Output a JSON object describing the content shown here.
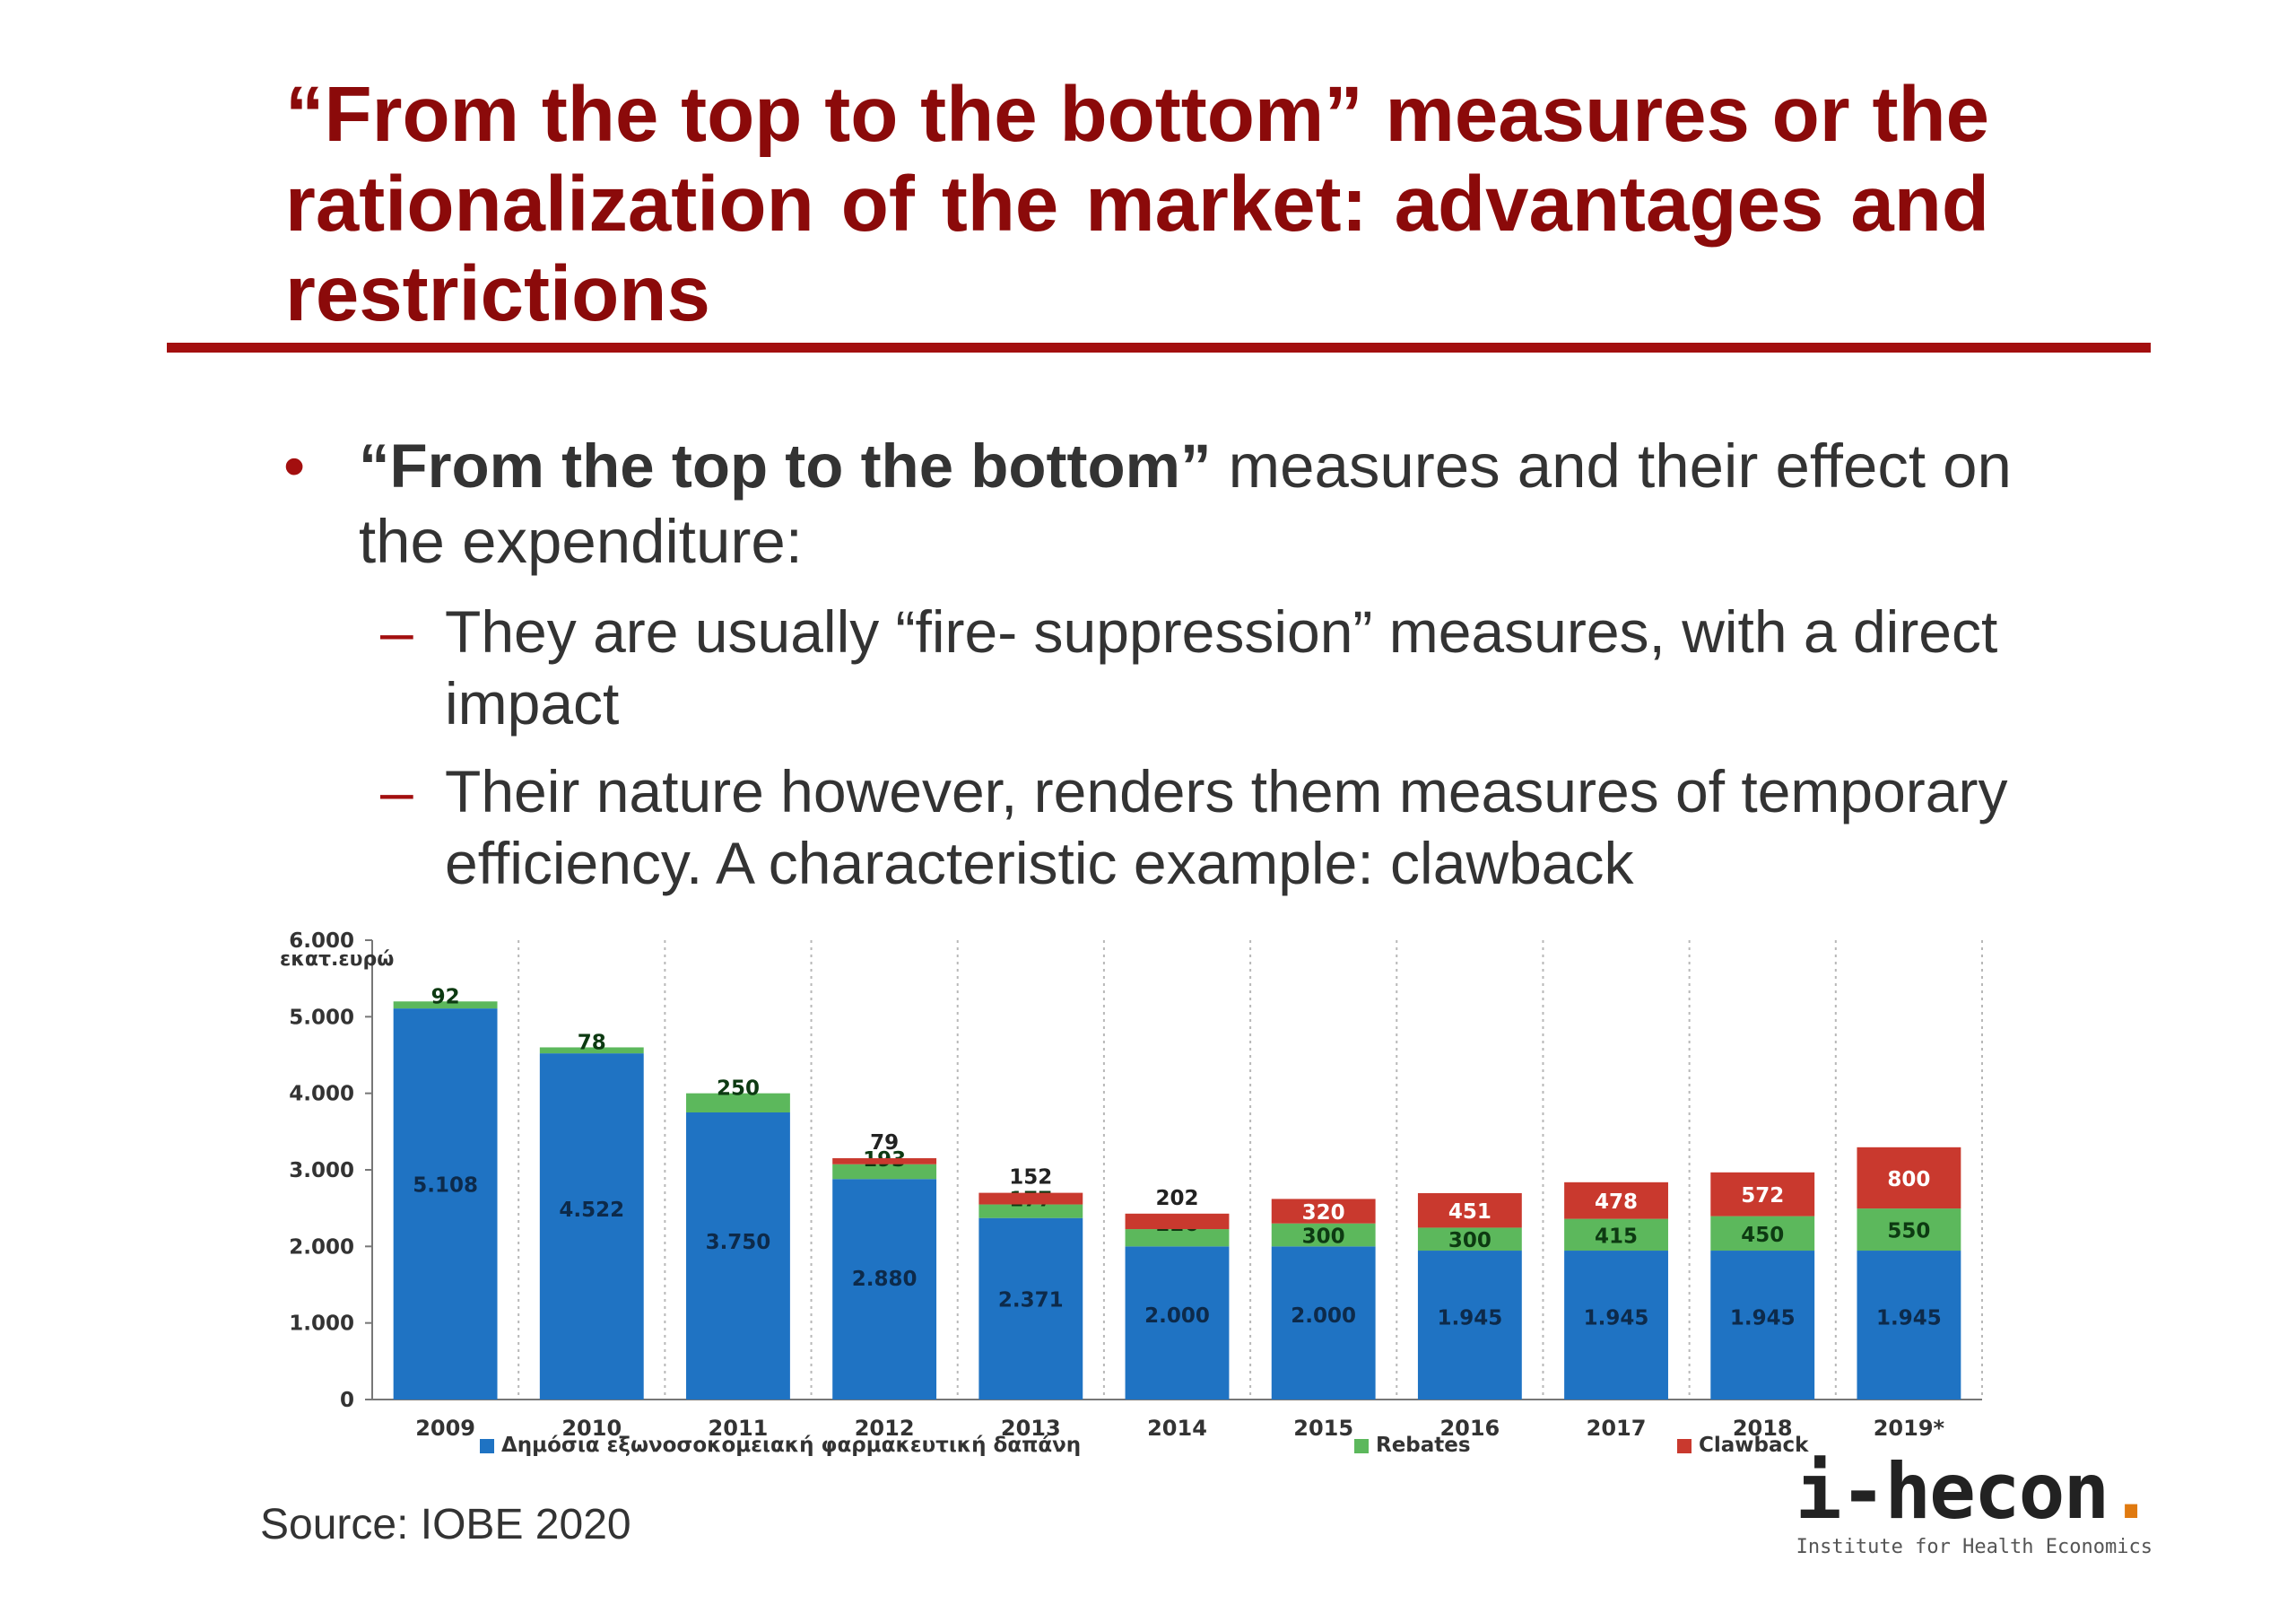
{
  "slide": {
    "title": "“From the top to the bottom” measures or the rationalization of the market: advantages and restrictions",
    "bullet_bold": "“From the top to the bottom”",
    "bullet_rest": " measures and their effect on the expenditure:",
    "sub1": "They are usually “fire- suppression” measures, with a direct impact",
    "sub2": "Their nature however, renders them measures of temporary efficiency. A characteristic example: clawback",
    "bullet_symbol": "•",
    "dash_symbol": "–",
    "source": "Source: IOBE 2020",
    "logo_main": "i-hecon",
    "logo_dot": ".",
    "logo_sub": "Institute for Health Economics",
    "accent_color": "#8b0a0a"
  },
  "chart_data": {
    "type": "bar",
    "stacked": true,
    "ylabel": "εκατ.ευρώ",
    "ylim": [
      0,
      6000
    ],
    "yticks": [
      "0",
      "1.000",
      "2.000",
      "3.000",
      "4.000",
      "5.000",
      "6.000"
    ],
    "ytick_values": [
      0,
      1000,
      2000,
      3000,
      4000,
      5000,
      6000
    ],
    "grid": "vertical dotted",
    "legend_position": "bottom",
    "categories": [
      "2009",
      "2010",
      "2011",
      "2012",
      "2013",
      "2014",
      "2015",
      "2016",
      "2017",
      "2018",
      "2019*"
    ],
    "series": [
      {
        "name": "Δημόσια εξωνοσοκομειακή φαρμακευτική δαπάνη",
        "color": "#1f73c3",
        "values": [
          5108,
          4522,
          3750,
          2880,
          2371,
          2000,
          2000,
          1945,
          1945,
          1945,
          1945
        ],
        "labels": [
          "5.108",
          "4.522",
          "3.750",
          "2.880",
          "2.371",
          "2.000",
          "2.000",
          "1.945",
          "1.945",
          "1.945",
          "1.945"
        ]
      },
      {
        "name": "Rebates",
        "color": "#5cb85c",
        "values": [
          92,
          78,
          250,
          193,
          177,
          226,
          300,
          300,
          415,
          450,
          550
        ],
        "labels": [
          "92",
          "78",
          "250",
          "193",
          "177",
          "226",
          "300",
          "300",
          "415",
          "450",
          "550"
        ]
      },
      {
        "name": "Clawback",
        "color": "#c9392e",
        "values": [
          0,
          0,
          0,
          79,
          152,
          202,
          320,
          451,
          478,
          572,
          800
        ],
        "labels": [
          "",
          "",
          "",
          "79",
          "152",
          "202",
          "320",
          "451",
          "478",
          "572",
          "800"
        ]
      }
    ]
  }
}
